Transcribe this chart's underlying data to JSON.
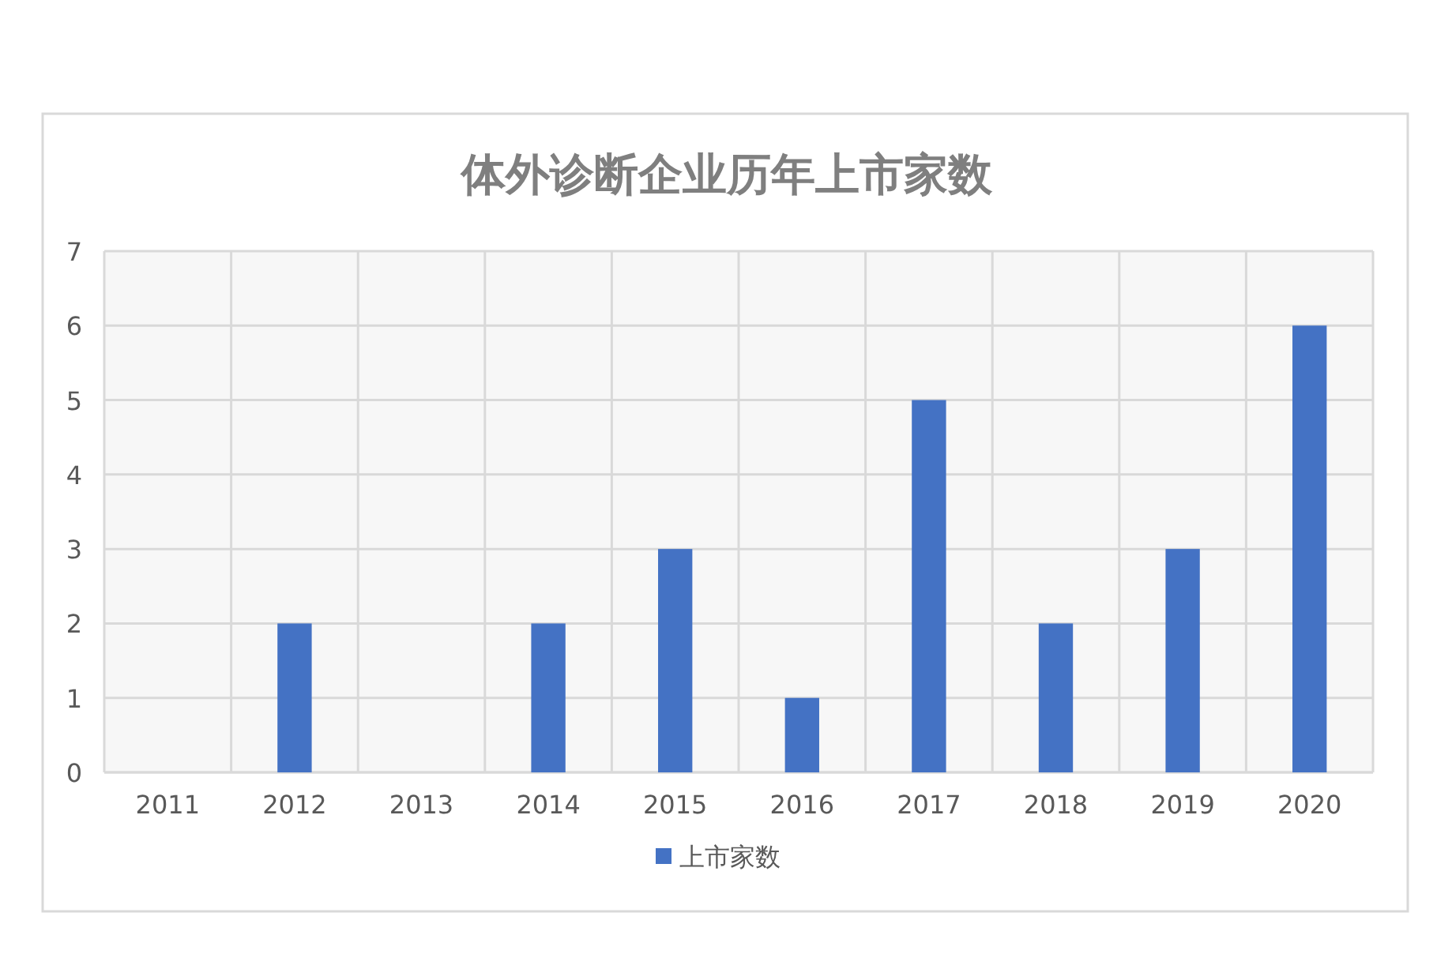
{
  "chart_data": {
    "type": "bar",
    "title": "体外诊断企业历年上市家数",
    "categories": [
      "2011",
      "2012",
      "2013",
      "2014",
      "2015",
      "2016",
      "2017",
      "2018",
      "2019",
      "2020"
    ],
    "series": [
      {
        "name": "上市家数",
        "color": "#4472c4",
        "values": [
          0,
          2,
          0,
          2,
          3,
          1,
          5,
          2,
          3,
          6
        ]
      }
    ],
    "ylim": [
      0,
      7
    ],
    "yticks": [
      0,
      1,
      2,
      3,
      4,
      5,
      6,
      7
    ],
    "grid": true,
    "legend": "bottom"
  }
}
